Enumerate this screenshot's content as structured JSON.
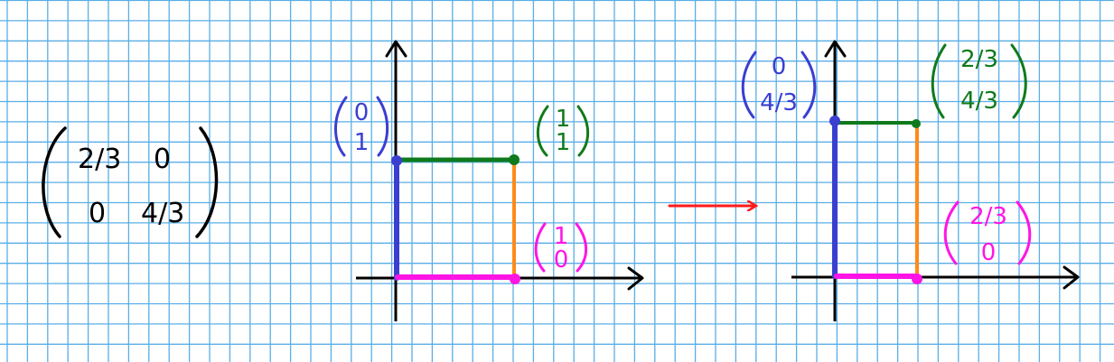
{
  "colors": {
    "grid": "#5aaee6",
    "axis": "#000000",
    "blue": "#3a3fd0",
    "green": "#0f7a1c",
    "orange": "#ff8a1a",
    "magenta": "#ff14e6",
    "red": "#ff1a1a",
    "ink": "#000000"
  },
  "matrix": {
    "a11": "2/3",
    "a12": "0",
    "a21": "0",
    "a22": "4/3"
  },
  "before": {
    "e2_vector": {
      "top": "0",
      "bottom": "1"
    },
    "diag_vector": {
      "top": "1",
      "bottom": "1"
    },
    "e1_vector": {
      "top": "1",
      "bottom": "0"
    }
  },
  "after": {
    "e2_vector": {
      "top": "0",
      "bottom": "4/3"
    },
    "diag_vector": {
      "top": "2/3",
      "bottom": "4/3"
    },
    "e1_vector": {
      "top": "2/3",
      "bottom": "0"
    }
  }
}
